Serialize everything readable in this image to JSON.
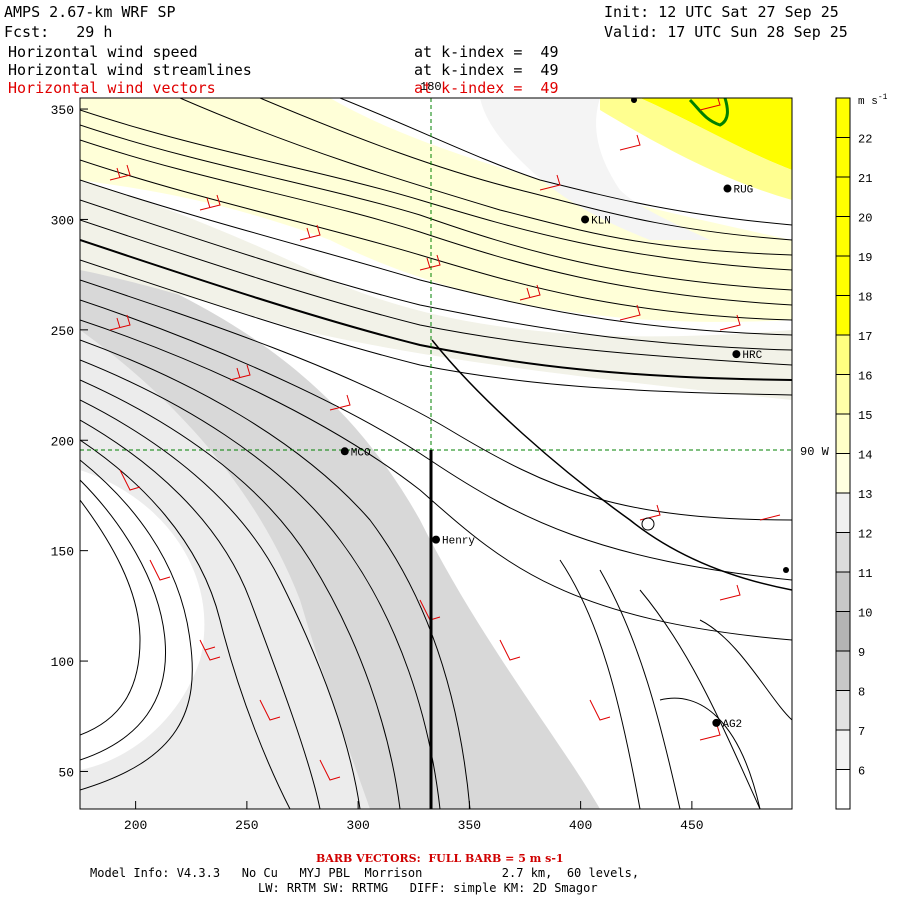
{
  "header": {
    "model": "AMPS 2.67-km WRF SP",
    "fcst": "Fcst:   29 h",
    "init": "Init: 12 UTC Sat 27 Sep 25",
    "valid": "Valid: 17 UTC Sun 28 Sep 25"
  },
  "fields": [
    {
      "name": "Horizontal wind speed",
      "level": "at k-index =  49",
      "color": "#000000"
    },
    {
      "name": "Horizontal wind streamlines",
      "level": "at k-index =  49",
      "color": "#000000"
    },
    {
      "name": "Horizontal wind vectors",
      "level": "at k-index =  49",
      "color": "#e00000"
    }
  ],
  "axes": {
    "x_ticks": [
      "200",
      "250",
      "300",
      "350",
      "400",
      "450"
    ],
    "y_ticks": [
      "350",
      "300",
      "250",
      "200",
      "150",
      "100",
      "50"
    ],
    "xlim": [
      175,
      495
    ],
    "ylim": [
      33,
      355
    ]
  },
  "grid_labels": {
    "meridian_top": "180",
    "meridian_right": "90 W"
  },
  "stations": [
    {
      "id": "MCO",
      "x": 294,
      "y": 195
    },
    {
      "id": "Henry",
      "x": 335,
      "y": 155
    },
    {
      "id": "KLN",
      "x": 402,
      "y": 300
    },
    {
      "id": "RUG",
      "x": 466,
      "y": 314
    },
    {
      "id": "HRC",
      "x": 470,
      "y": 239
    },
    {
      "id": "AG2",
      "x": 461,
      "y": 72
    }
  ],
  "colorbar": {
    "units": "m s-1",
    "labels": [
      "22",
      "21",
      "20",
      "19",
      "18",
      "17",
      "16",
      "15",
      "14",
      "13",
      "12",
      "11",
      "10",
      "9",
      "8",
      "7",
      "6"
    ],
    "colors": [
      "#ffff00",
      "#ffff00",
      "#ffff00",
      "#ffff00",
      "#ffff00",
      "#ffff00",
      "#ffff80",
      "#ffffa8",
      "#ffffc8",
      "#ffffe0",
      "#f0f0f0",
      "#dcdcdc",
      "#c8c8c8",
      "#b4b4b4",
      "#c8c8c8",
      "#e2e2e2",
      "#f2f2f2",
      "#ffffff"
    ]
  },
  "footer": {
    "barb": "BARB VECTORS:  FULL BARB = 5 m s-1",
    "model_info": "Model Info: V4.3.3   No Cu   MYJ PBL  Morrison           2.7 km,  60 levels,",
    "physics": "LW: RRTM SW: RRTMG   DIFF: simple KM: 2D Smagor"
  }
}
